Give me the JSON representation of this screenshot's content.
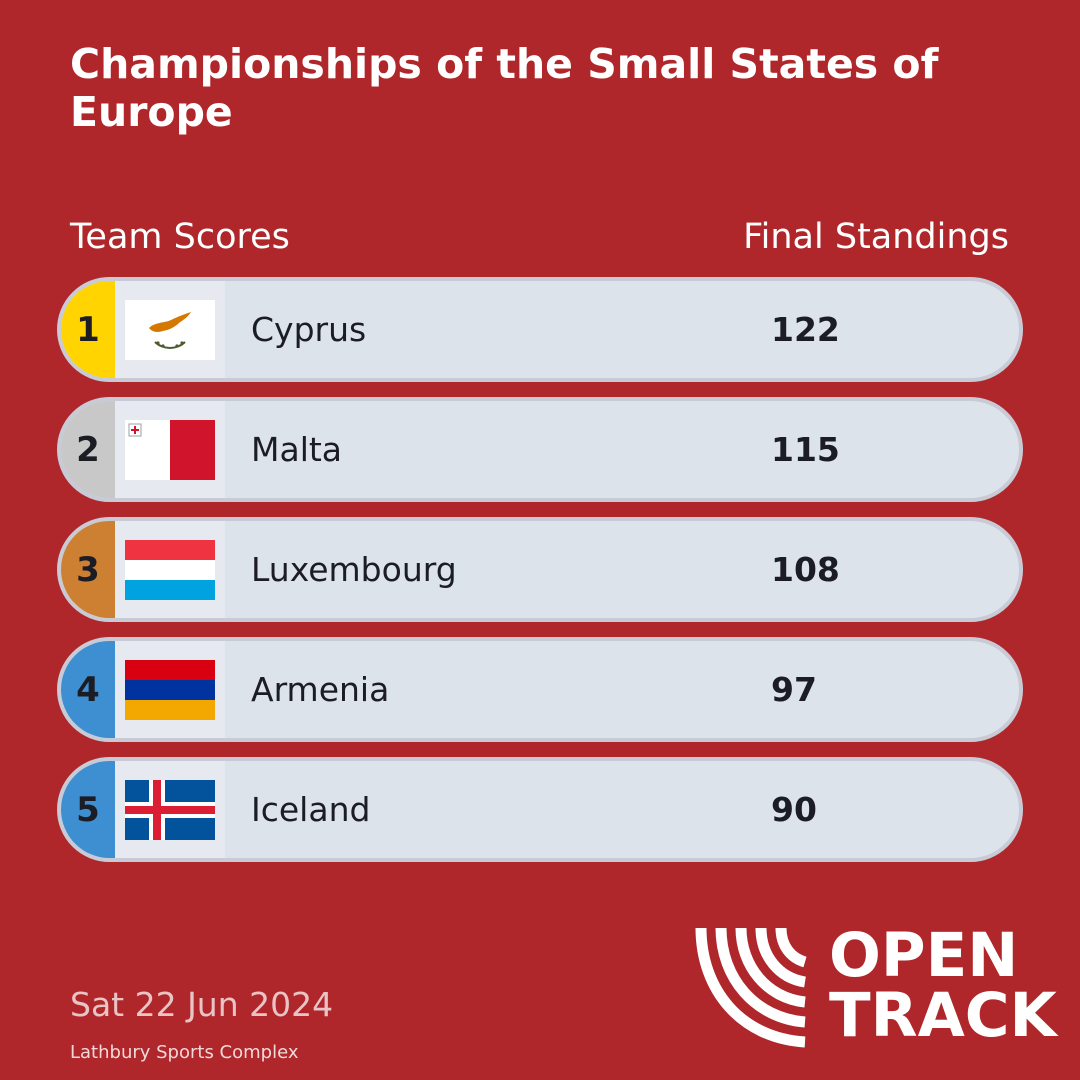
{
  "title": "Championships of the Small States of Europe",
  "subheading_left": "Team Scores",
  "subheading_right": "Final Standings",
  "colors": {
    "background": "#b0272b",
    "row_bg": "#dde3ea",
    "rank_1": "#ffd400",
    "rank_2": "#c8c8c8",
    "rank_3": "#cd7f32",
    "rank_other": "#3d8fd1"
  },
  "standings": [
    {
      "rank": "1",
      "country": "Cyprus",
      "score": "122",
      "flag_icon": "cyprus-flag-icon"
    },
    {
      "rank": "2",
      "country": "Malta",
      "score": "115",
      "flag_icon": "malta-flag-icon"
    },
    {
      "rank": "3",
      "country": "Luxembourg",
      "score": "108",
      "flag_icon": "luxembourg-flag-icon"
    },
    {
      "rank": "4",
      "country": "Armenia",
      "score": "97",
      "flag_icon": "armenia-flag-icon"
    },
    {
      "rank": "5",
      "country": "Iceland",
      "score": "90",
      "flag_icon": "iceland-flag-icon"
    }
  ],
  "date": "Sat 22 Jun 2024",
  "venue": "Lathbury Sports Complex",
  "logo": {
    "line1": "OPEN",
    "line2": "TRACK"
  }
}
